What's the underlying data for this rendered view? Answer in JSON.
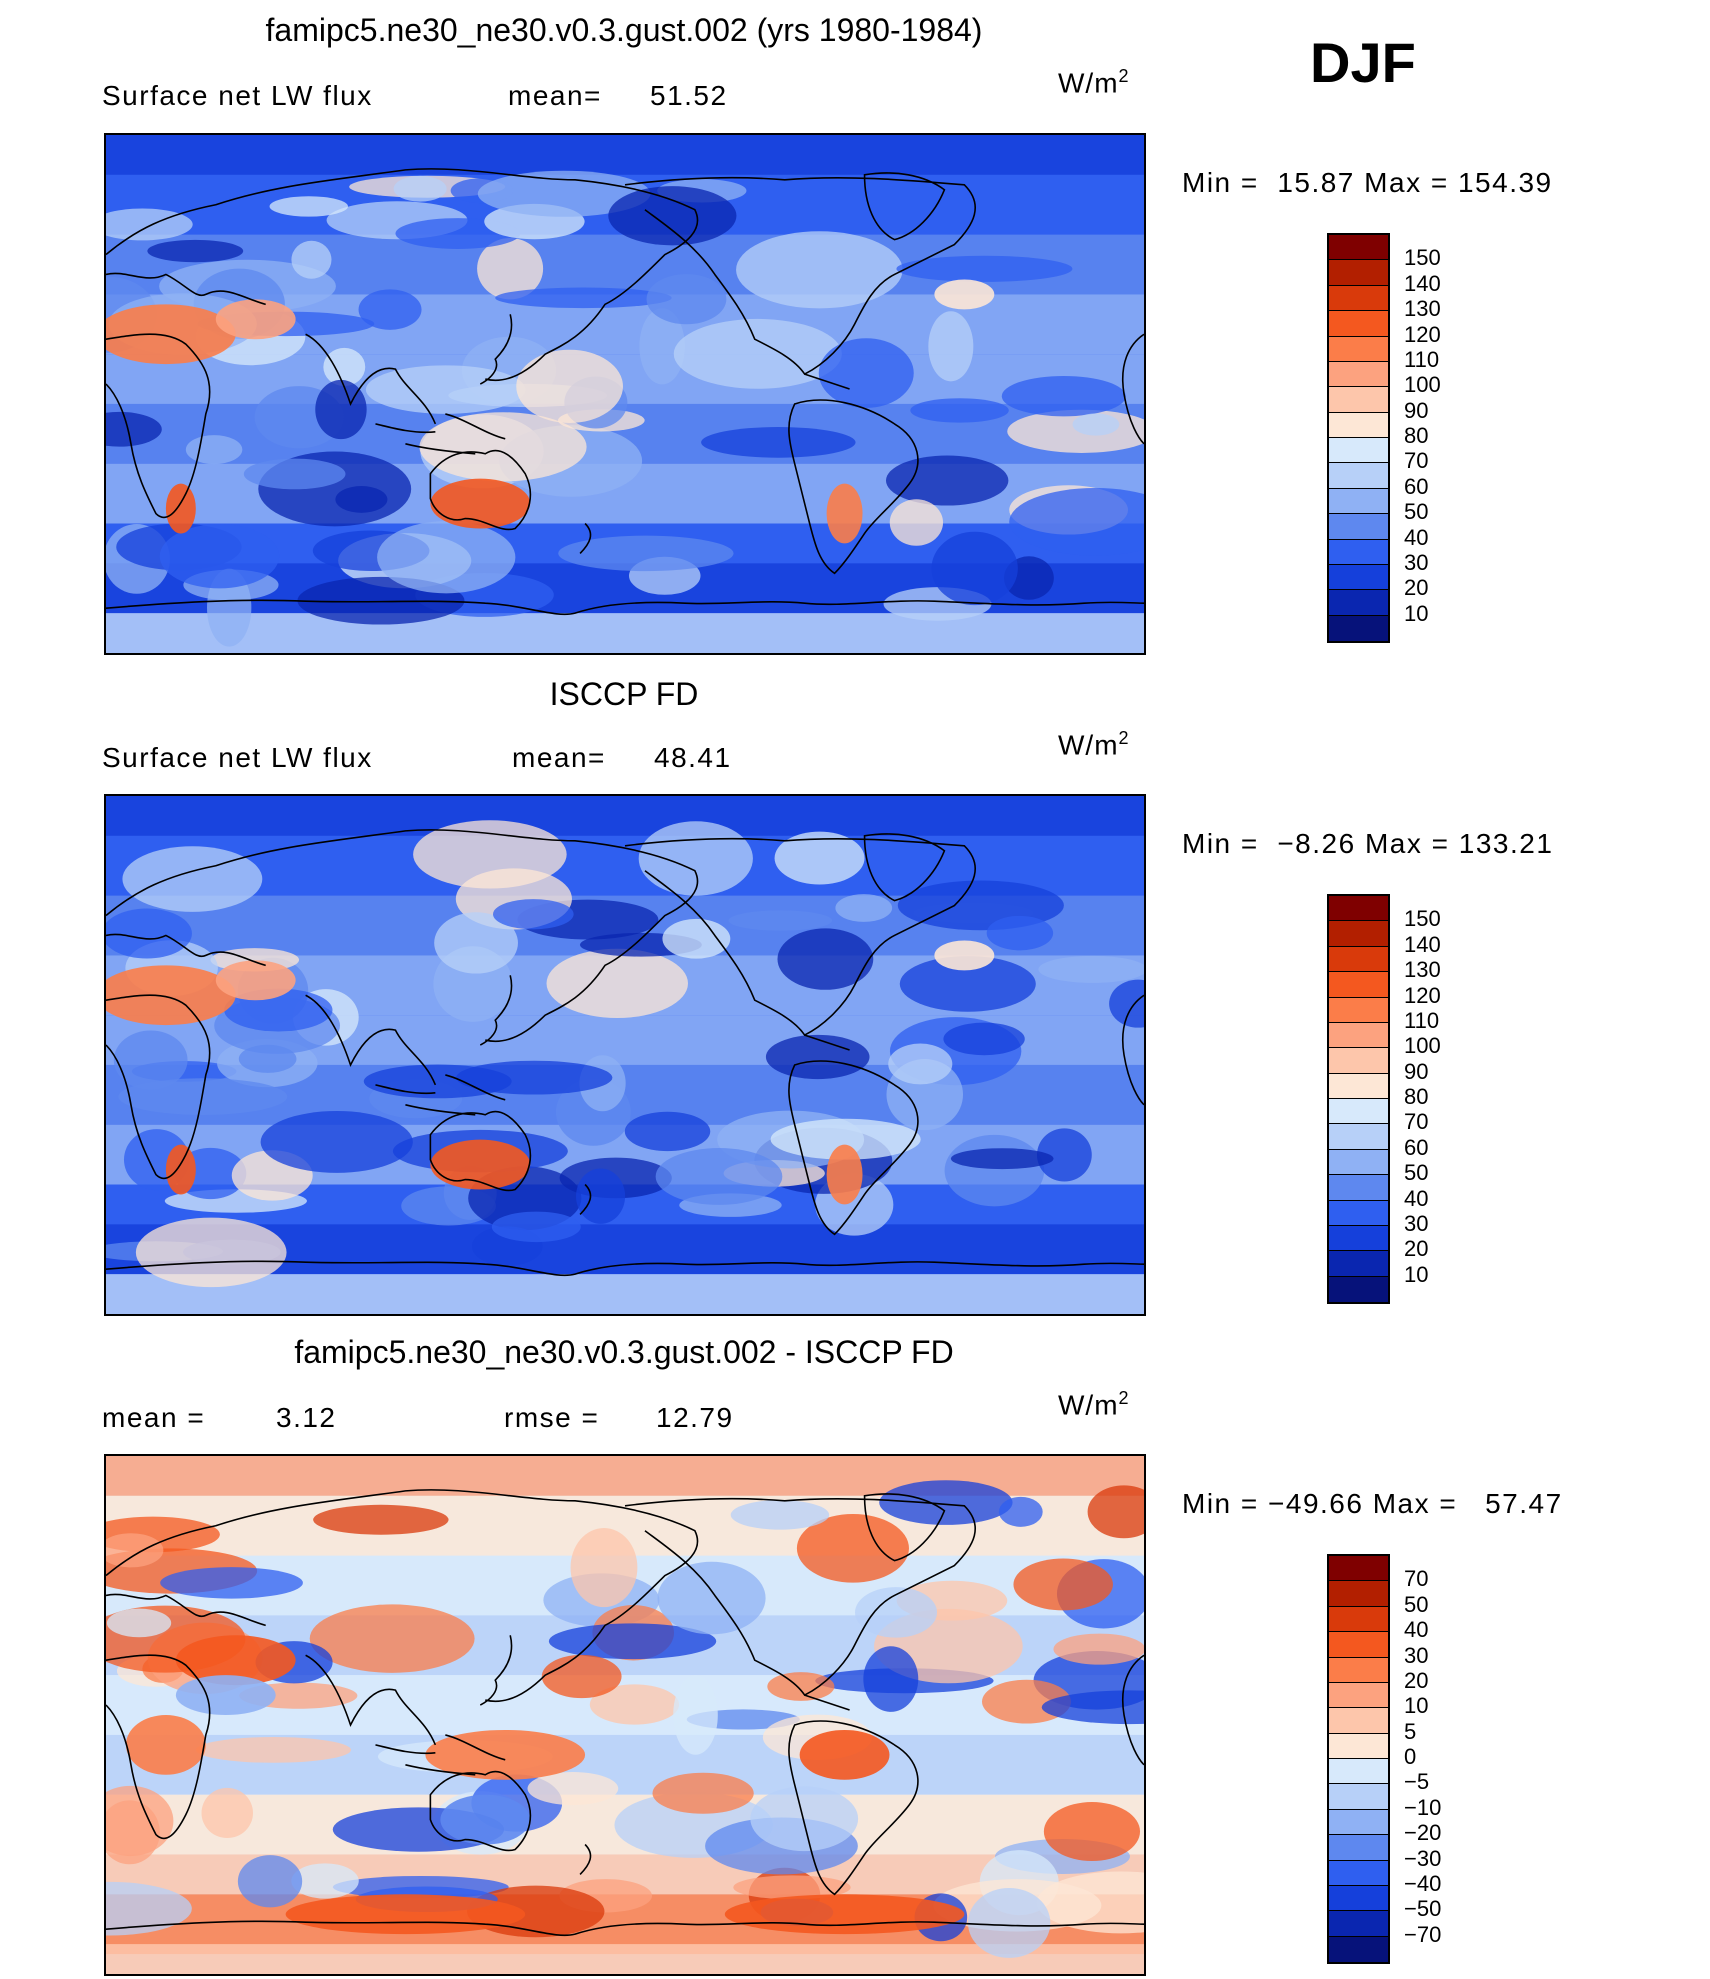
{
  "season": "DJF",
  "panels": [
    {
      "id": "model",
      "title": "famipc5.ne30_ne30.v0.3.gust.002 (yrs 1980-1984)",
      "left_text": "Surface net LW flux",
      "middle_label": "mean=",
      "middle_value": "51.52",
      "units": "W/m",
      "units_sup": "2",
      "min_label": "Min =",
      "min_value": "15.87",
      "max_label": "Max =",
      "max_value": "154.39",
      "colorbar": {
        "labels": [
          "150",
          "140",
          "130",
          "120",
          "110",
          "100",
          "90",
          "80",
          "70",
          "60",
          "50",
          "40",
          "30",
          "20",
          "10"
        ],
        "colors": [
          "#7f0000",
          "#b21f00",
          "#d93a0b",
          "#f4581f",
          "#fb7d49",
          "#fca27f",
          "#fdc6ab",
          "#fde7d6",
          "#d7e9fb",
          "#b7d0f8",
          "#8fb1f4",
          "#5e88ef",
          "#2f5ff0",
          "#1540db",
          "#0a26b0",
          "#06127a"
        ]
      },
      "map_type": "absolute"
    },
    {
      "id": "obs",
      "title": "ISCCP FD",
      "left_text": "Surface net LW flux",
      "middle_label": "mean=",
      "middle_value": "48.41",
      "units": "W/m",
      "units_sup": "2",
      "min_label": "Min =",
      "min_value": "−8.26",
      "max_label": "Max =",
      "max_value": "133.21",
      "colorbar": {
        "labels": [
          "150",
          "140",
          "130",
          "120",
          "110",
          "100",
          "90",
          "80",
          "70",
          "60",
          "50",
          "40",
          "30",
          "20",
          "10"
        ],
        "colors": [
          "#7f0000",
          "#b21f00",
          "#d93a0b",
          "#f4581f",
          "#fb7d49",
          "#fca27f",
          "#fdc6ab",
          "#fde7d6",
          "#d7e9fb",
          "#b7d0f8",
          "#8fb1f4",
          "#5e88ef",
          "#2f5ff0",
          "#1540db",
          "#0a26b0",
          "#06127a"
        ]
      },
      "map_type": "absolute"
    },
    {
      "id": "diff",
      "title": "famipc5.ne30_ne30.v0.3.gust.002 - ISCCP FD",
      "left_text": "mean =",
      "left_value": "3.12",
      "middle_label": "rmse =",
      "middle_value": "12.79",
      "units": "W/m",
      "units_sup": "2",
      "min_label": "Min =",
      "min_value": "−49.66",
      "max_label": "Max =",
      "max_value": "57.47",
      "colorbar": {
        "labels": [
          "70",
          "50",
          "40",
          "30",
          "20",
          "10",
          "5",
          "0",
          "−5",
          "−10",
          "−20",
          "−30",
          "−40",
          "−50",
          "−70"
        ],
        "colors": [
          "#7f0000",
          "#b21f00",
          "#d93a0b",
          "#f4581f",
          "#fb7d49",
          "#fca27f",
          "#fdc6ab",
          "#fde7d6",
          "#d7e9fb",
          "#b7d0f8",
          "#8fb1f4",
          "#5e88ef",
          "#2f5ff0",
          "#1540db",
          "#0a26b0",
          "#06127a"
        ]
      },
      "map_type": "difference"
    }
  ]
}
